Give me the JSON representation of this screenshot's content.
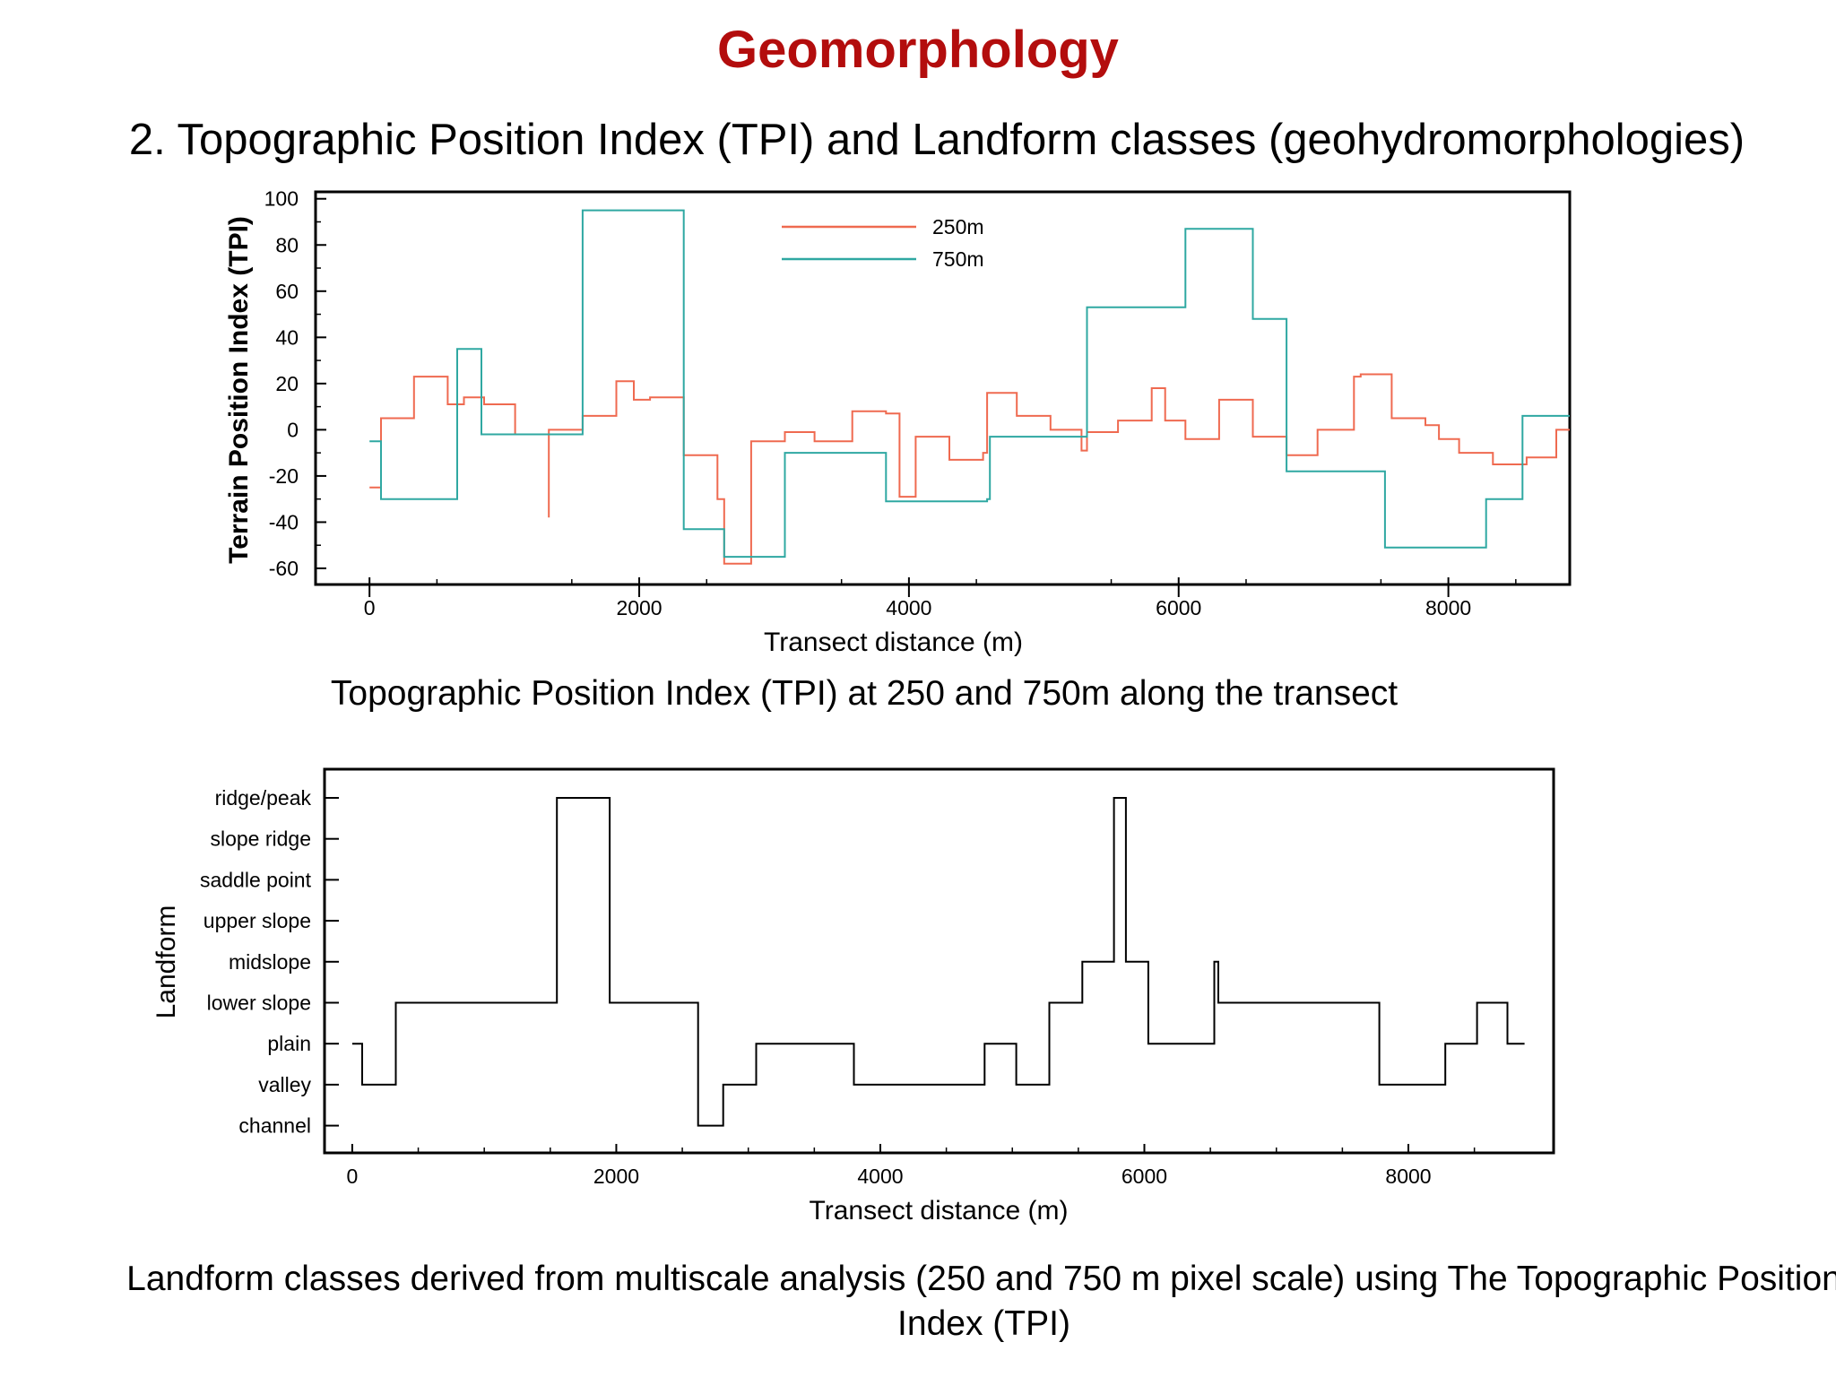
{
  "slide": {
    "title": "Geomorphology",
    "subtitle": "2. Topographic Position Index (TPI) and Landform classes (geohydromorphologies)",
    "caption_top": "Topographic Position Index (TPI) at 250 and 750m along the transect",
    "caption_bottom": "Landform classes derived from multiscale analysis (250 and 750 m pixel scale) using The Topographic Position Index (TPI)"
  },
  "chart_data": [
    {
      "type": "line",
      "step": true,
      "xlabel": "Transect distance (m)",
      "ylabel": "Terrain Position Index (TPI)",
      "xlim": [
        -400,
        8900
      ],
      "ylim": [
        -67,
        103
      ],
      "xticks": [
        0,
        2000,
        4000,
        6000,
        8000
      ],
      "yticks": [
        100,
        80,
        60,
        40,
        20,
        0,
        -20,
        -40,
        -60
      ],
      "legend_position": "top-center",
      "series": [
        {
          "name": "250m",
          "color": "#ef6a50",
          "points": [
            [
              0,
              -25
            ],
            [
              85,
              -25
            ],
            [
              85,
              5
            ],
            [
              330,
              5
            ],
            [
              330,
              23
            ],
            [
              580,
              23
            ],
            [
              580,
              11
            ],
            [
              700,
              11
            ],
            [
              700,
              14
            ],
            [
              850,
              14
            ],
            [
              850,
              11
            ],
            [
              1080,
              11
            ],
            [
              1080,
              -2
            ],
            [
              1330,
              -2
            ],
            [
              1330,
              -38
            ],
            [
              1330,
              0
            ],
            [
              1580,
              0
            ],
            [
              1580,
              6
            ],
            [
              1830,
              6
            ],
            [
              1830,
              21
            ],
            [
              1960,
              21
            ],
            [
              1960,
              13
            ],
            [
              2080,
              13
            ],
            [
              2080,
              14
            ],
            [
              2330,
              14
            ],
            [
              2330,
              -11
            ],
            [
              2580,
              -11
            ],
            [
              2580,
              -30
            ],
            [
              2630,
              -30
            ],
            [
              2630,
              -58
            ],
            [
              2830,
              -58
            ],
            [
              2830,
              -5
            ],
            [
              3080,
              -5
            ],
            [
              3080,
              -1
            ],
            [
              3300,
              -1
            ],
            [
              3300,
              -5
            ],
            [
              3580,
              -5
            ],
            [
              3580,
              8
            ],
            [
              3830,
              8
            ],
            [
              3830,
              7
            ],
            [
              3930,
              7
            ],
            [
              3930,
              -29
            ],
            [
              4050,
              -29
            ],
            [
              4050,
              -3
            ],
            [
              4300,
              -3
            ],
            [
              4300,
              -13
            ],
            [
              4550,
              -13
            ],
            [
              4550,
              -10
            ],
            [
              4580,
              -10
            ],
            [
              4580,
              16
            ],
            [
              4800,
              16
            ],
            [
              4800,
              6
            ],
            [
              5050,
              6
            ],
            [
              5050,
              0
            ],
            [
              5280,
              0
            ],
            [
              5280,
              -9
            ],
            [
              5320,
              -9
            ],
            [
              5320,
              -1
            ],
            [
              5550,
              -1
            ],
            [
              5550,
              4
            ],
            [
              5800,
              4
            ],
            [
              5800,
              18
            ],
            [
              5900,
              18
            ],
            [
              5900,
              4
            ],
            [
              6050,
              4
            ],
            [
              6050,
              -4
            ],
            [
              6300,
              -4
            ],
            [
              6300,
              13
            ],
            [
              6550,
              13
            ],
            [
              6550,
              -3
            ],
            [
              6800,
              -3
            ],
            [
              6800,
              -11
            ],
            [
              7030,
              -11
            ],
            [
              7030,
              0
            ],
            [
              7300,
              0
            ],
            [
              7300,
              23
            ],
            [
              7350,
              23
            ],
            [
              7350,
              24
            ],
            [
              7580,
              24
            ],
            [
              7580,
              5
            ],
            [
              7830,
              5
            ],
            [
              7830,
              2
            ],
            [
              7930,
              2
            ],
            [
              7930,
              -4
            ],
            [
              8080,
              -4
            ],
            [
              8080,
              -10
            ],
            [
              8330,
              -10
            ],
            [
              8330,
              -15
            ],
            [
              8580,
              -15
            ],
            [
              8580,
              -12
            ],
            [
              8800,
              -12
            ],
            [
              8800,
              0
            ],
            [
              8900,
              0
            ]
          ]
        },
        {
          "name": "750m",
          "color": "#2fa8a2",
          "points": [
            [
              0,
              -5
            ],
            [
              85,
              -5
            ],
            [
              85,
              -30
            ],
            [
              650,
              -30
            ],
            [
              650,
              35
            ],
            [
              830,
              35
            ],
            [
              830,
              -2
            ],
            [
              1580,
              -2
            ],
            [
              1580,
              95
            ],
            [
              2330,
              95
            ],
            [
              2330,
              -43
            ],
            [
              2630,
              -43
            ],
            [
              2630,
              -55
            ],
            [
              3080,
              -55
            ],
            [
              3080,
              -10
            ],
            [
              3830,
              -10
            ],
            [
              3830,
              -31
            ],
            [
              4580,
              -31
            ],
            [
              4580,
              -30
            ],
            [
              4600,
              -30
            ],
            [
              4600,
              -3
            ],
            [
              5320,
              -3
            ],
            [
              5320,
              53
            ],
            [
              6050,
              53
            ],
            [
              6050,
              87
            ],
            [
              6550,
              87
            ],
            [
              6550,
              48
            ],
            [
              6800,
              48
            ],
            [
              6800,
              -18
            ],
            [
              7530,
              -18
            ],
            [
              7530,
              -51
            ],
            [
              8280,
              -51
            ],
            [
              8280,
              -30
            ],
            [
              8550,
              -30
            ],
            [
              8550,
              6
            ],
            [
              8900,
              6
            ]
          ]
        }
      ]
    },
    {
      "type": "line",
      "step": true,
      "xlabel": "Transect distance (m)",
      "ylabel": "Landform",
      "xlim": [
        -210,
        9100
      ],
      "xticks": [
        0,
        2000,
        4000,
        6000,
        8000
      ],
      "categories": [
        "channel",
        "valley",
        "plain",
        "lower slope",
        "midslope",
        "upper slope",
        "saddle point",
        "slope ridge",
        "ridge/peak"
      ],
      "color": "#000000",
      "points": [
        [
          0,
          2
        ],
        [
          75,
          2
        ],
        [
          75,
          1
        ],
        [
          330,
          1
        ],
        [
          330,
          3
        ],
        [
          1550,
          3
        ],
        [
          1550,
          8
        ],
        [
          1950,
          8
        ],
        [
          1950,
          3
        ],
        [
          2620,
          3
        ],
        [
          2620,
          0
        ],
        [
          2810,
          0
        ],
        [
          2810,
          1
        ],
        [
          3060,
          1
        ],
        [
          3060,
          2
        ],
        [
          3800,
          2
        ],
        [
          3800,
          1
        ],
        [
          4790,
          1
        ],
        [
          4790,
          2
        ],
        [
          5030,
          2
        ],
        [
          5030,
          1
        ],
        [
          5280,
          1
        ],
        [
          5280,
          3
        ],
        [
          5530,
          3
        ],
        [
          5530,
          4
        ],
        [
          5770,
          4
        ],
        [
          5770,
          8
        ],
        [
          5860,
          8
        ],
        [
          5860,
          4
        ],
        [
          6030,
          4
        ],
        [
          6030,
          2
        ],
        [
          6530,
          2
        ],
        [
          6530,
          4
        ],
        [
          6560,
          4
        ],
        [
          6560,
          3
        ],
        [
          7780,
          3
        ],
        [
          7780,
          1
        ],
        [
          8280,
          1
        ],
        [
          8280,
          2
        ],
        [
          8520,
          2
        ],
        [
          8520,
          3
        ],
        [
          8750,
          3
        ],
        [
          8750,
          2
        ],
        [
          8880,
          2
        ]
      ]
    }
  ]
}
